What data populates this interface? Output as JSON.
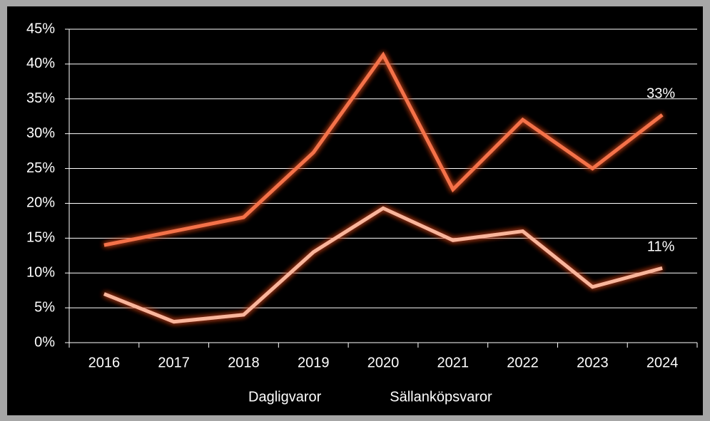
{
  "chart_data": {
    "type": "line",
    "categories": [
      "2016",
      "2017",
      "2018",
      "2019",
      "2020",
      "2021",
      "2022",
      "2023",
      "2024"
    ],
    "series": [
      {
        "name": "Dagligvaror",
        "color": "#f4724a",
        "values": [
          14,
          16,
          18,
          27.3,
          41.3,
          22,
          32,
          25,
          32.7
        ],
        "value_labels": [
          null,
          null,
          null,
          null,
          null,
          null,
          null,
          null,
          "33%"
        ]
      },
      {
        "name": "Sällanköpsvaror",
        "color": "#f9b59b",
        "values": [
          7,
          3,
          4,
          13,
          19.3,
          14.7,
          16,
          8,
          10.7
        ],
        "value_labels": [
          null,
          null,
          null,
          null,
          null,
          null,
          null,
          null,
          "11%"
        ]
      }
    ],
    "ylim": [
      0,
      45
    ],
    "yticks": [
      {
        "value": 0,
        "label": "0%"
      },
      {
        "value": 5,
        "label": "5%"
      },
      {
        "value": 10,
        "label": "10%"
      },
      {
        "value": 15,
        "label": "15%"
      },
      {
        "value": 20,
        "label": "20%"
      },
      {
        "value": 25,
        "label": "25%"
      },
      {
        "value": 30,
        "label": "30%"
      },
      {
        "value": 35,
        "label": "35%"
      },
      {
        "value": 40,
        "label": "40%"
      },
      {
        "value": 45,
        "label": "45%"
      }
    ],
    "grid": true,
    "legend": "bottom"
  }
}
